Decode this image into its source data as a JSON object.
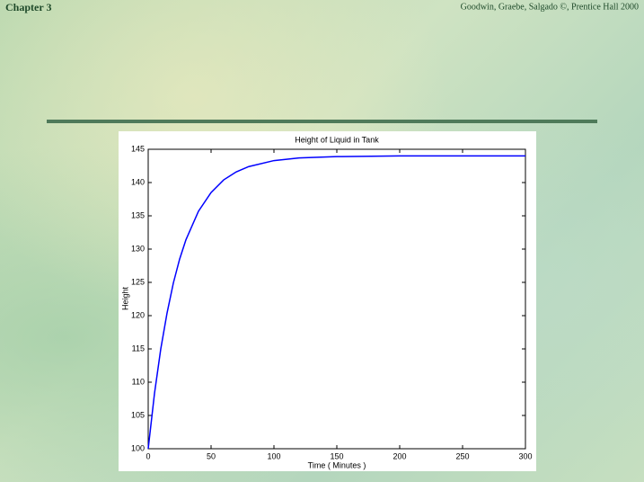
{
  "header": {
    "chapter": "Chapter 3",
    "credit": "Goodwin, Graebe, Salgado ©, Prentice Hall 2000"
  },
  "chart_data": {
    "type": "line",
    "title": "Height of Liquid in Tank",
    "x_label": "Time ( Minutes )",
    "y_label": "Height",
    "x": [
      0,
      5,
      10,
      15,
      20,
      25,
      30,
      40,
      50,
      60,
      70,
      80,
      100,
      120,
      150,
      200,
      250,
      300
    ],
    "values": [
      100,
      108.3,
      115.0,
      120.4,
      124.9,
      128.5,
      131.4,
      135.7,
      138.5,
      140.4,
      141.6,
      142.4,
      143.3,
      143.7,
      143.9,
      144,
      144,
      144
    ],
    "color": "#0000ff",
    "xlim": [
      0,
      300
    ],
    "xticks": [
      0,
      50,
      100,
      150,
      200,
      250,
      300
    ],
    "ylim": [
      100,
      145
    ],
    "yticks": [
      100,
      105,
      110,
      115,
      120,
      125,
      130,
      135,
      140,
      145
    ]
  }
}
